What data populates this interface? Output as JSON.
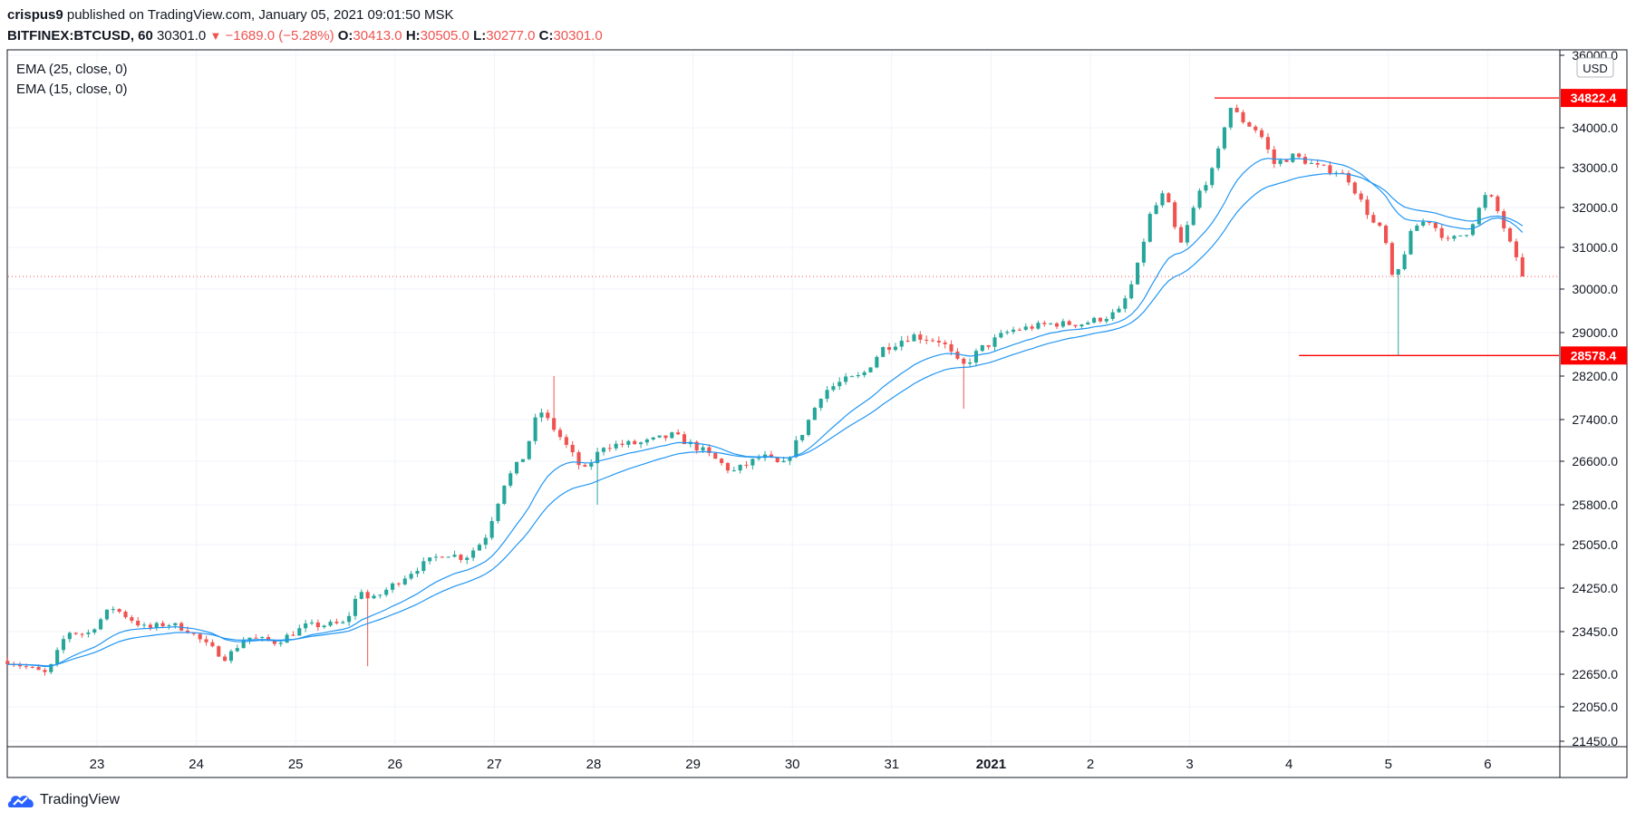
{
  "header": {
    "author": "crispus9",
    "published_text": " published on TradingView.com, January 05, 2021 09:01:50 MSK"
  },
  "ticker": {
    "symbol": "BITFINEX:BTCUSD, 60",
    "last": "30301.0",
    "change": "−1689.0 (−5.28%)",
    "o_label": "O:",
    "o_value": "30413.0",
    "h_label": "H:",
    "h_value": "30505.0",
    "l_label": "L:",
    "l_value": "30277.0",
    "c_label": "C:",
    "c_value": "30301.0"
  },
  "legend": [
    "EMA (25, close, 0)",
    "EMA (15, close, 0)"
  ],
  "footer": {
    "brand": "TradingView",
    "icon": "tradingview-logo-icon"
  },
  "colors": {
    "up": "#26a69a",
    "down": "#ef5350",
    "ema": "#2196f3",
    "level": "#ff0000",
    "grid": "#f0f3fa"
  },
  "chart_data": {
    "type": "candlestick",
    "currency": "USD",
    "y_ticks": [
      21450,
      22050,
      22650,
      23450,
      24250,
      25050,
      25800,
      26600,
      27400,
      28200,
      29000,
      30000,
      31000,
      32000,
      33000,
      34000,
      36000
    ],
    "y_tick_labels": [
      "21450.0",
      "22050.0",
      "22650.0",
      "23450.0",
      "24250.0",
      "25050.0",
      "25800.0",
      "26600.0",
      "27400.0",
      "28200.0",
      "29000.0",
      "30000.0",
      "31000.0",
      "32000.0",
      "33000.0",
      "34000.0",
      "36000.0"
    ],
    "x_ticks": [
      {
        "label": "23",
        "bold": false
      },
      {
        "label": "24",
        "bold": false
      },
      {
        "label": "25",
        "bold": false
      },
      {
        "label": "26",
        "bold": false
      },
      {
        "label": "27",
        "bold": false
      },
      {
        "label": "28",
        "bold": false
      },
      {
        "label": "29",
        "bold": false
      },
      {
        "label": "30",
        "bold": false
      },
      {
        "label": "31",
        "bold": false
      },
      {
        "label": "2021",
        "bold": true
      },
      {
        "label": "2",
        "bold": false
      },
      {
        "label": "3",
        "bold": false
      },
      {
        "label": "4",
        "bold": false
      },
      {
        "label": "5",
        "bold": false
      },
      {
        "label": "6",
        "bold": false
      }
    ],
    "levels": [
      {
        "value": 34822.4,
        "label": "34822.4",
        "from_day": 3.25
      },
      {
        "value": 28578.4,
        "label": "28578.4",
        "from_day": 4.1
      }
    ],
    "last_price": 30301.0,
    "path": [
      [
        22.1,
        22900
      ],
      [
        22.5,
        22650
      ],
      [
        22.7,
        23450
      ],
      [
        22.9,
        23400
      ],
      [
        23.15,
        23900
      ],
      [
        23.5,
        23500
      ],
      [
        23.7,
        23600
      ],
      [
        23.9,
        23500
      ],
      [
        24.1,
        23200
      ],
      [
        24.3,
        22950
      ],
      [
        24.5,
        23350
      ],
      [
        24.8,
        23250
      ],
      [
        25.1,
        23550
      ],
      [
        25.5,
        23600
      ],
      [
        25.65,
        24250
      ],
      [
        25.75,
        24000
      ],
      [
        26.2,
        24600
      ],
      [
        26.5,
        24900
      ],
      [
        26.7,
        24800
      ],
      [
        26.9,
        25150
      ],
      [
        27.1,
        26200
      ],
      [
        27.3,
        26700
      ],
      [
        27.45,
        27600
      ],
      [
        27.65,
        27100
      ],
      [
        27.9,
        26400
      ],
      [
        28.1,
        26900
      ],
      [
        28.5,
        26950
      ],
      [
        28.8,
        27100
      ],
      [
        29.1,
        26800
      ],
      [
        29.4,
        26400
      ],
      [
        29.7,
        26700
      ],
      [
        29.9,
        26500
      ],
      [
        30.1,
        27150
      ],
      [
        30.3,
        27900
      ],
      [
        30.5,
        28100
      ],
      [
        30.7,
        28200
      ],
      [
        30.9,
        28700
      ],
      [
        31.2,
        28950
      ],
      [
        31.5,
        28850
      ],
      [
        31.7,
        28350
      ],
      [
        31.9,
        28700
      ],
      [
        32.2,
        29050
      ],
      [
        32.6,
        29200
      ],
      [
        32.9,
        29200
      ],
      [
        33.15,
        29350
      ],
      [
        33.3,
        29500
      ],
      [
        33.45,
        30300
      ],
      [
        33.6,
        31800
      ],
      [
        33.75,
        32400
      ],
      [
        33.9,
        31000
      ],
      [
        34.1,
        32400
      ],
      [
        34.25,
        33000
      ],
      [
        34.4,
        34600
      ],
      [
        34.55,
        34150
      ],
      [
        34.7,
        33900
      ],
      [
        34.85,
        33100
      ],
      [
        35.05,
        33300
      ],
      [
        35.3,
        33000
      ],
      [
        35.5,
        32900
      ],
      [
        35.6,
        32700
      ],
      [
        35.85,
        31600
      ],
      [
        35.95,
        31400
      ],
      [
        36.05,
        30100
      ],
      [
        36.25,
        31500
      ],
      [
        36.4,
        31700
      ],
      [
        36.6,
        31150
      ],
      [
        36.8,
        31400
      ],
      [
        37.0,
        32400
      ],
      [
        37.1,
        31900
      ],
      [
        37.3,
        30600
      ],
      [
        37.4,
        30301
      ]
    ],
    "spikes": [
      [
        25.72,
        22800
      ],
      [
        27.62,
        28200
      ],
      [
        28.05,
        25800
      ],
      [
        31.7,
        27600
      ],
      [
        36.07,
        28578
      ],
      [
        36.1,
        29400
      ]
    ]
  }
}
